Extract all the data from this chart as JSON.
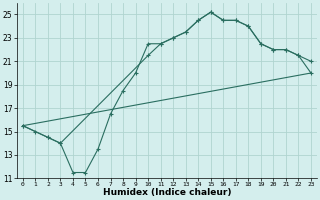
{
  "xlabel": "Humidex (Indice chaleur)",
  "ylabel": "",
  "background_color": "#d4eeed",
  "grid_color": "#b0d4d0",
  "line_color": "#2a6e60",
  "xlim": [
    -0.5,
    23.5
  ],
  "ylim": [
    11,
    26
  ],
  "yticks": [
    11,
    13,
    15,
    17,
    19,
    21,
    23,
    25
  ],
  "xticks": [
    0,
    1,
    2,
    3,
    4,
    5,
    6,
    7,
    8,
    9,
    10,
    11,
    12,
    13,
    14,
    15,
    16,
    17,
    18,
    19,
    20,
    21,
    22,
    23
  ],
  "line1_x": [
    0,
    1,
    2,
    3,
    4,
    5,
    6,
    7,
    8,
    9,
    10,
    11,
    12,
    13,
    14,
    15,
    16,
    17,
    18,
    19,
    20,
    21,
    22,
    23
  ],
  "line1_y": [
    15.5,
    15.0,
    14.5,
    14.0,
    11.5,
    11.5,
    13.5,
    16.5,
    18.5,
    20.0,
    22.5,
    22.5,
    23.0,
    23.5,
    24.5,
    25.2,
    24.5,
    24.5,
    24.0,
    22.5,
    22.0,
    22.0,
    21.5,
    21.0
  ],
  "line2_x": [
    0,
    2,
    3,
    10,
    11,
    12,
    13,
    14,
    15,
    16,
    17,
    18,
    19,
    20,
    21,
    22,
    23
  ],
  "line2_y": [
    15.5,
    14.5,
    14.0,
    21.5,
    22.5,
    23.0,
    23.5,
    24.5,
    25.2,
    24.5,
    24.5,
    24.0,
    22.5,
    22.0,
    22.0,
    21.5,
    20.0
  ],
  "line3_x": [
    0,
    23
  ],
  "line3_y": [
    15.5,
    20.0
  ]
}
